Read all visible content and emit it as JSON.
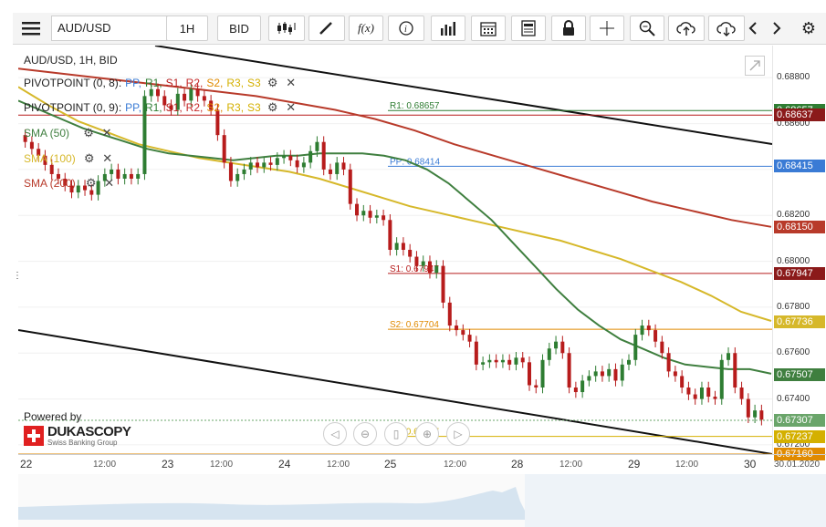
{
  "toolbar": {
    "menu_icon": "hamburger-icon",
    "instrument": "AUD/USD",
    "timeframe": "1H",
    "price_side": "BID",
    "fx_label": "f(x)",
    "icons": [
      "candles-icon",
      "pencil-icon",
      "fx-icon",
      "info-icon",
      "volume-icon",
      "calendar-icon",
      "sheet-icon",
      "lock-icon",
      "crosshair-icon",
      "zoom-icon",
      "upload-cloud-icon",
      "download-cloud-icon",
      "chevron-left-icon",
      "chevron-right-icon",
      "gear-icon"
    ]
  },
  "legend": {
    "title": "AUD/USD, 1H, BID",
    "pivot1": {
      "name": "PIVOTPOINT (0, 8)",
      "sep": " :",
      "pp": "PP,",
      "r1": "R1,",
      "s1": "S1,",
      "r2": "R2,",
      "s2": "S2,",
      "r3": "R3,",
      "s3": "S3"
    },
    "pivot2": {
      "name": "PIVOTPOINT (0, 9)",
      "sep": " :",
      "pp": "PP,",
      "r1": "R1,",
      "s1": "S1,",
      "r2": "R2,",
      "s2": "S2,",
      "r3": "R3,",
      "s3": "S3"
    },
    "sma50": "SMA (50)",
    "sma100": "SMA (100)",
    "sma200": "SMA (200)"
  },
  "branding": {
    "powered_by": "Powered by",
    "name": "DUKASCOPY",
    "tagline": "Swiss Banking Group"
  },
  "colors": {
    "pp": "#3a7bd5",
    "r1": "#2e7d32",
    "s1": "#b71c1c",
    "r2": "#c62828",
    "s2": "#e08a00",
    "r3": "#d4b000",
    "s3": "#d4b000",
    "sma50": "#3f7f3f",
    "sma100": "#d6b82a",
    "sma200": "#b83a2a",
    "up": "#2e7d32",
    "down": "#b71c1c",
    "price": "#6aa56a"
  },
  "chart_data": {
    "type": "candlestick",
    "title": "AUD/USD, 1H, BID",
    "ylim": [
      0.6716,
      0.6894
    ],
    "y_ticks": [
      0.688,
      0.686,
      0.684,
      0.682,
      0.68,
      0.678,
      0.676,
      0.674,
      0.672
    ],
    "y_tick_labels": [
      "0.68800",
      "0.68600",
      "0.68400",
      "0.68200",
      "0.68000",
      "0.67800",
      "0.67600",
      "0.67400",
      "0.67200"
    ],
    "x_day_labels": [
      "22",
      "23",
      "24",
      "25",
      "28",
      "29",
      "30"
    ],
    "x_time_labels": [
      "12:00",
      "12:00",
      "12:00",
      "12:00",
      "12:00",
      "12:00"
    ],
    "x_date_label": "30.01.2020",
    "levels": [
      {
        "name": "R1",
        "label": "R1: 0.68657",
        "value": 0.68657,
        "color": "#2e7d32"
      },
      {
        "name": "PP",
        "label": "PP: 0.68414",
        "value": 0.68414,
        "color": "#3a7bd5"
      },
      {
        "name": "S1",
        "label": "S1: 0.67947",
        "value": 0.67947,
        "color": "#b71c1c"
      },
      {
        "name": "S2",
        "label": "S2: 0.67704",
        "value": 0.67704,
        "color": "#e08a00"
      },
      {
        "name": "S3",
        "label": "S3: 0.67237",
        "value": 0.67237,
        "color": "#d4b000"
      },
      {
        "name": "R2",
        "label": "",
        "value": 0.68637,
        "color": "#b71c1c"
      },
      {
        "name": "S2b",
        "label": "",
        "value": 0.6716,
        "color": "#e08a00"
      }
    ],
    "price_tags": [
      {
        "value": 0.68657,
        "label": "0.68657",
        "color": "#2e7d32"
      },
      {
        "value": 0.68637,
        "label": "0.68637",
        "color": "#8b1a1a"
      },
      {
        "value": 0.68415,
        "label": "0.68415",
        "color": "#3a7bd5"
      },
      {
        "value": 0.6815,
        "label": "0.68150",
        "color": "#b83a2a"
      },
      {
        "value": 0.67947,
        "label": "0.67947",
        "color": "#8b1a1a"
      },
      {
        "value": 0.67736,
        "label": "0.67736",
        "color": "#d6b82a"
      },
      {
        "value": 0.67507,
        "label": "0.67507",
        "color": "#3f7f3f"
      },
      {
        "value": 0.67307,
        "label": "0.67307",
        "color": "#6aa56a"
      },
      {
        "value": 0.67237,
        "label": "0.67237",
        "color": "#d4b000"
      },
      {
        "value": 0.6716,
        "label": "0.67160",
        "color": "#e08a00"
      }
    ],
    "last_price": 0.67307,
    "closes": [
      0.6852,
      0.6849,
      0.6846,
      0.6842,
      0.6838,
      0.6836,
      0.6833,
      0.683,
      0.6833,
      0.6831,
      0.6829,
      0.6835,
      0.6838,
      0.684,
      0.6836,
      0.6838,
      0.6836,
      0.6838,
      0.6872,
      0.6875,
      0.6872,
      0.6868,
      0.6866,
      0.6873,
      0.687,
      0.6875,
      0.6872,
      0.687,
      0.6866,
      0.6855,
      0.6843,
      0.6835,
      0.6838,
      0.684,
      0.6843,
      0.6841,
      0.6843,
      0.6842,
      0.6845,
      0.6846,
      0.6844,
      0.6841,
      0.6843,
      0.6848,
      0.6852,
      0.684,
      0.6838,
      0.6843,
      0.684,
      0.6825,
      0.682,
      0.6822,
      0.6819,
      0.682,
      0.6818,
      0.6805,
      0.6808,
      0.6805,
      0.6802,
      0.6798,
      0.68,
      0.6795,
      0.6798,
      0.6782,
      0.6772,
      0.677,
      0.6768,
      0.6765,
      0.6755,
      0.6756,
      0.6757,
      0.6756,
      0.6757,
      0.6755,
      0.6758,
      0.6756,
      0.6746,
      0.6745,
      0.6757,
      0.6762,
      0.6765,
      0.676,
      0.6745,
      0.6743,
      0.6748,
      0.675,
      0.6752,
      0.675,
      0.6753,
      0.6748,
      0.6755,
      0.6757,
      0.6768,
      0.6772,
      0.677,
      0.6765,
      0.676,
      0.6752,
      0.675,
      0.6745,
      0.6742,
      0.674,
      0.6745,
      0.6741,
      0.674,
      0.6757,
      0.676,
      0.6745,
      0.674,
      0.6732,
      0.6735,
      0.6731
    ],
    "sma50": [
      0.687,
      0.6866,
      0.6862,
      0.6858,
      0.6855,
      0.6852,
      0.6849,
      0.6847,
      0.6846,
      0.6845,
      0.6844,
      0.6845,
      0.6846,
      0.6846,
      0.6847,
      0.6847,
      0.6847,
      0.6846,
      0.6844,
      0.684,
      0.6834,
      0.6826,
      0.6818,
      0.6808,
      0.6798,
      0.6788,
      0.6779,
      0.6772,
      0.6766,
      0.6762,
      0.6758,
      0.6755,
      0.6754,
      0.6753,
      0.6753,
      0.6751
    ],
    "sma100": [
      0.6876,
      0.6868,
      0.6861,
      0.6856,
      0.6851,
      0.6848,
      0.6845,
      0.6843,
      0.6841,
      0.6839,
      0.6836,
      0.6832,
      0.6828,
      0.6824,
      0.6821,
      0.6818,
      0.6815,
      0.6812,
      0.6809,
      0.6805,
      0.6801,
      0.6796,
      0.6791,
      0.6785,
      0.6778,
      0.6774
    ],
    "sma200": [
      0.6884,
      0.6882,
      0.688,
      0.6878,
      0.6876,
      0.6874,
      0.6872,
      0.6869,
      0.6866,
      0.6862,
      0.6857,
      0.6851,
      0.6846,
      0.6841,
      0.6836,
      0.6831,
      0.6826,
      0.6822,
      0.6818,
      0.6815
    ]
  }
}
